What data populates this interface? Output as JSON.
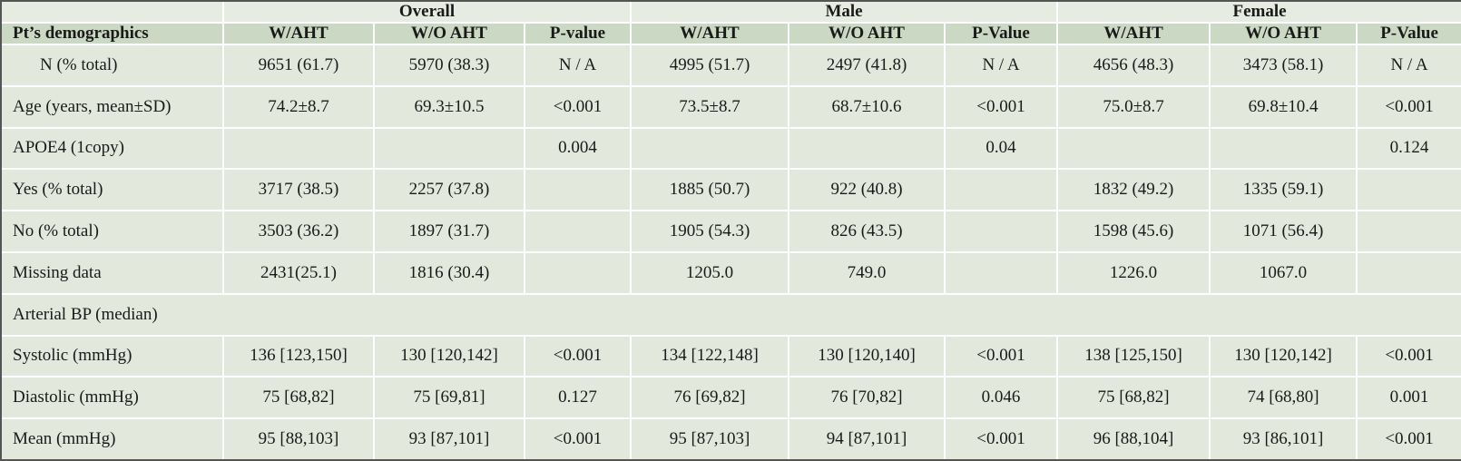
{
  "header": {
    "groups": [
      "Overall",
      "Male",
      "Female"
    ],
    "columns": [
      "Pt’s demographics",
      "W/AHT",
      "W/O AHT",
      "P-value",
      "W/AHT",
      "W/O AHT",
      "P-Value",
      "W/AHT",
      "W/O AHT",
      "P-Value"
    ]
  },
  "table": {
    "rows": [
      [
        "N (% total)",
        "9651 (61.7)",
        "5970 (38.3)",
        "N / A",
        "4995 (51.7)",
        "2497 (41.8)",
        "N / A",
        "4656 (48.3)",
        "3473 (58.1)",
        "N / A"
      ],
      [
        "Age (years, mean±SD)",
        "74.2±8.7",
        "69.3±10.5",
        "<0.001",
        "73.5±8.7",
        "68.7±10.6",
        "<0.001",
        "75.0±8.7",
        "69.8±10.4",
        "<0.001"
      ],
      [
        "APOE4 (1copy)",
        null,
        null,
        "0.004",
        null,
        null,
        "0.04",
        null,
        null,
        "0.124"
      ],
      [
        "Yes (% total)",
        "3717 (38.5)",
        "2257 (37.8)",
        null,
        "1885 (50.7)",
        "922 (40.8)",
        null,
        "1832 (49.2)",
        "1335 (59.1)",
        null
      ],
      [
        "No (% total)",
        "3503 (36.2)",
        "1897 (31.7)",
        null,
        "1905 (54.3)",
        "826 (43.5)",
        null,
        "1598 (45.6)",
        "1071 (56.4)",
        null
      ],
      [
        "Missing data",
        "2431(25.1)",
        "1816 (30.4)",
        null,
        "1205.0",
        "749.0",
        null,
        "1226.0",
        "1067.0",
        null
      ],
      [
        "Arterial BP (median)",
        null,
        null,
        null,
        null,
        null,
        null,
        null,
        null,
        null
      ],
      [
        "Systolic (mmHg)",
        "136 [123,150]",
        "130 [120,142]",
        "<0.001",
        "134 [122,148]",
        "130 [120,140]",
        "<0.001",
        "138 [125,150]",
        "130 [120,142]",
        "<0.001"
      ],
      [
        "Diastolic (mmHg)",
        "75 [68,82]",
        "75 [69,81]",
        "0.127",
        "76 [69,82]",
        "76 [70,82]",
        "0.046",
        "75 [68,82]",
        "74 [68,80]",
        "0.001"
      ],
      [
        "Mean (mmHg)",
        "95 [88,103]",
        "93 [87,101]",
        "<0.001",
        "95 [87,103]",
        "94 [87,101]",
        "<0.001",
        "96 [88,104]",
        "93 [86,101]",
        "<0.001"
      ]
    ]
  }
}
